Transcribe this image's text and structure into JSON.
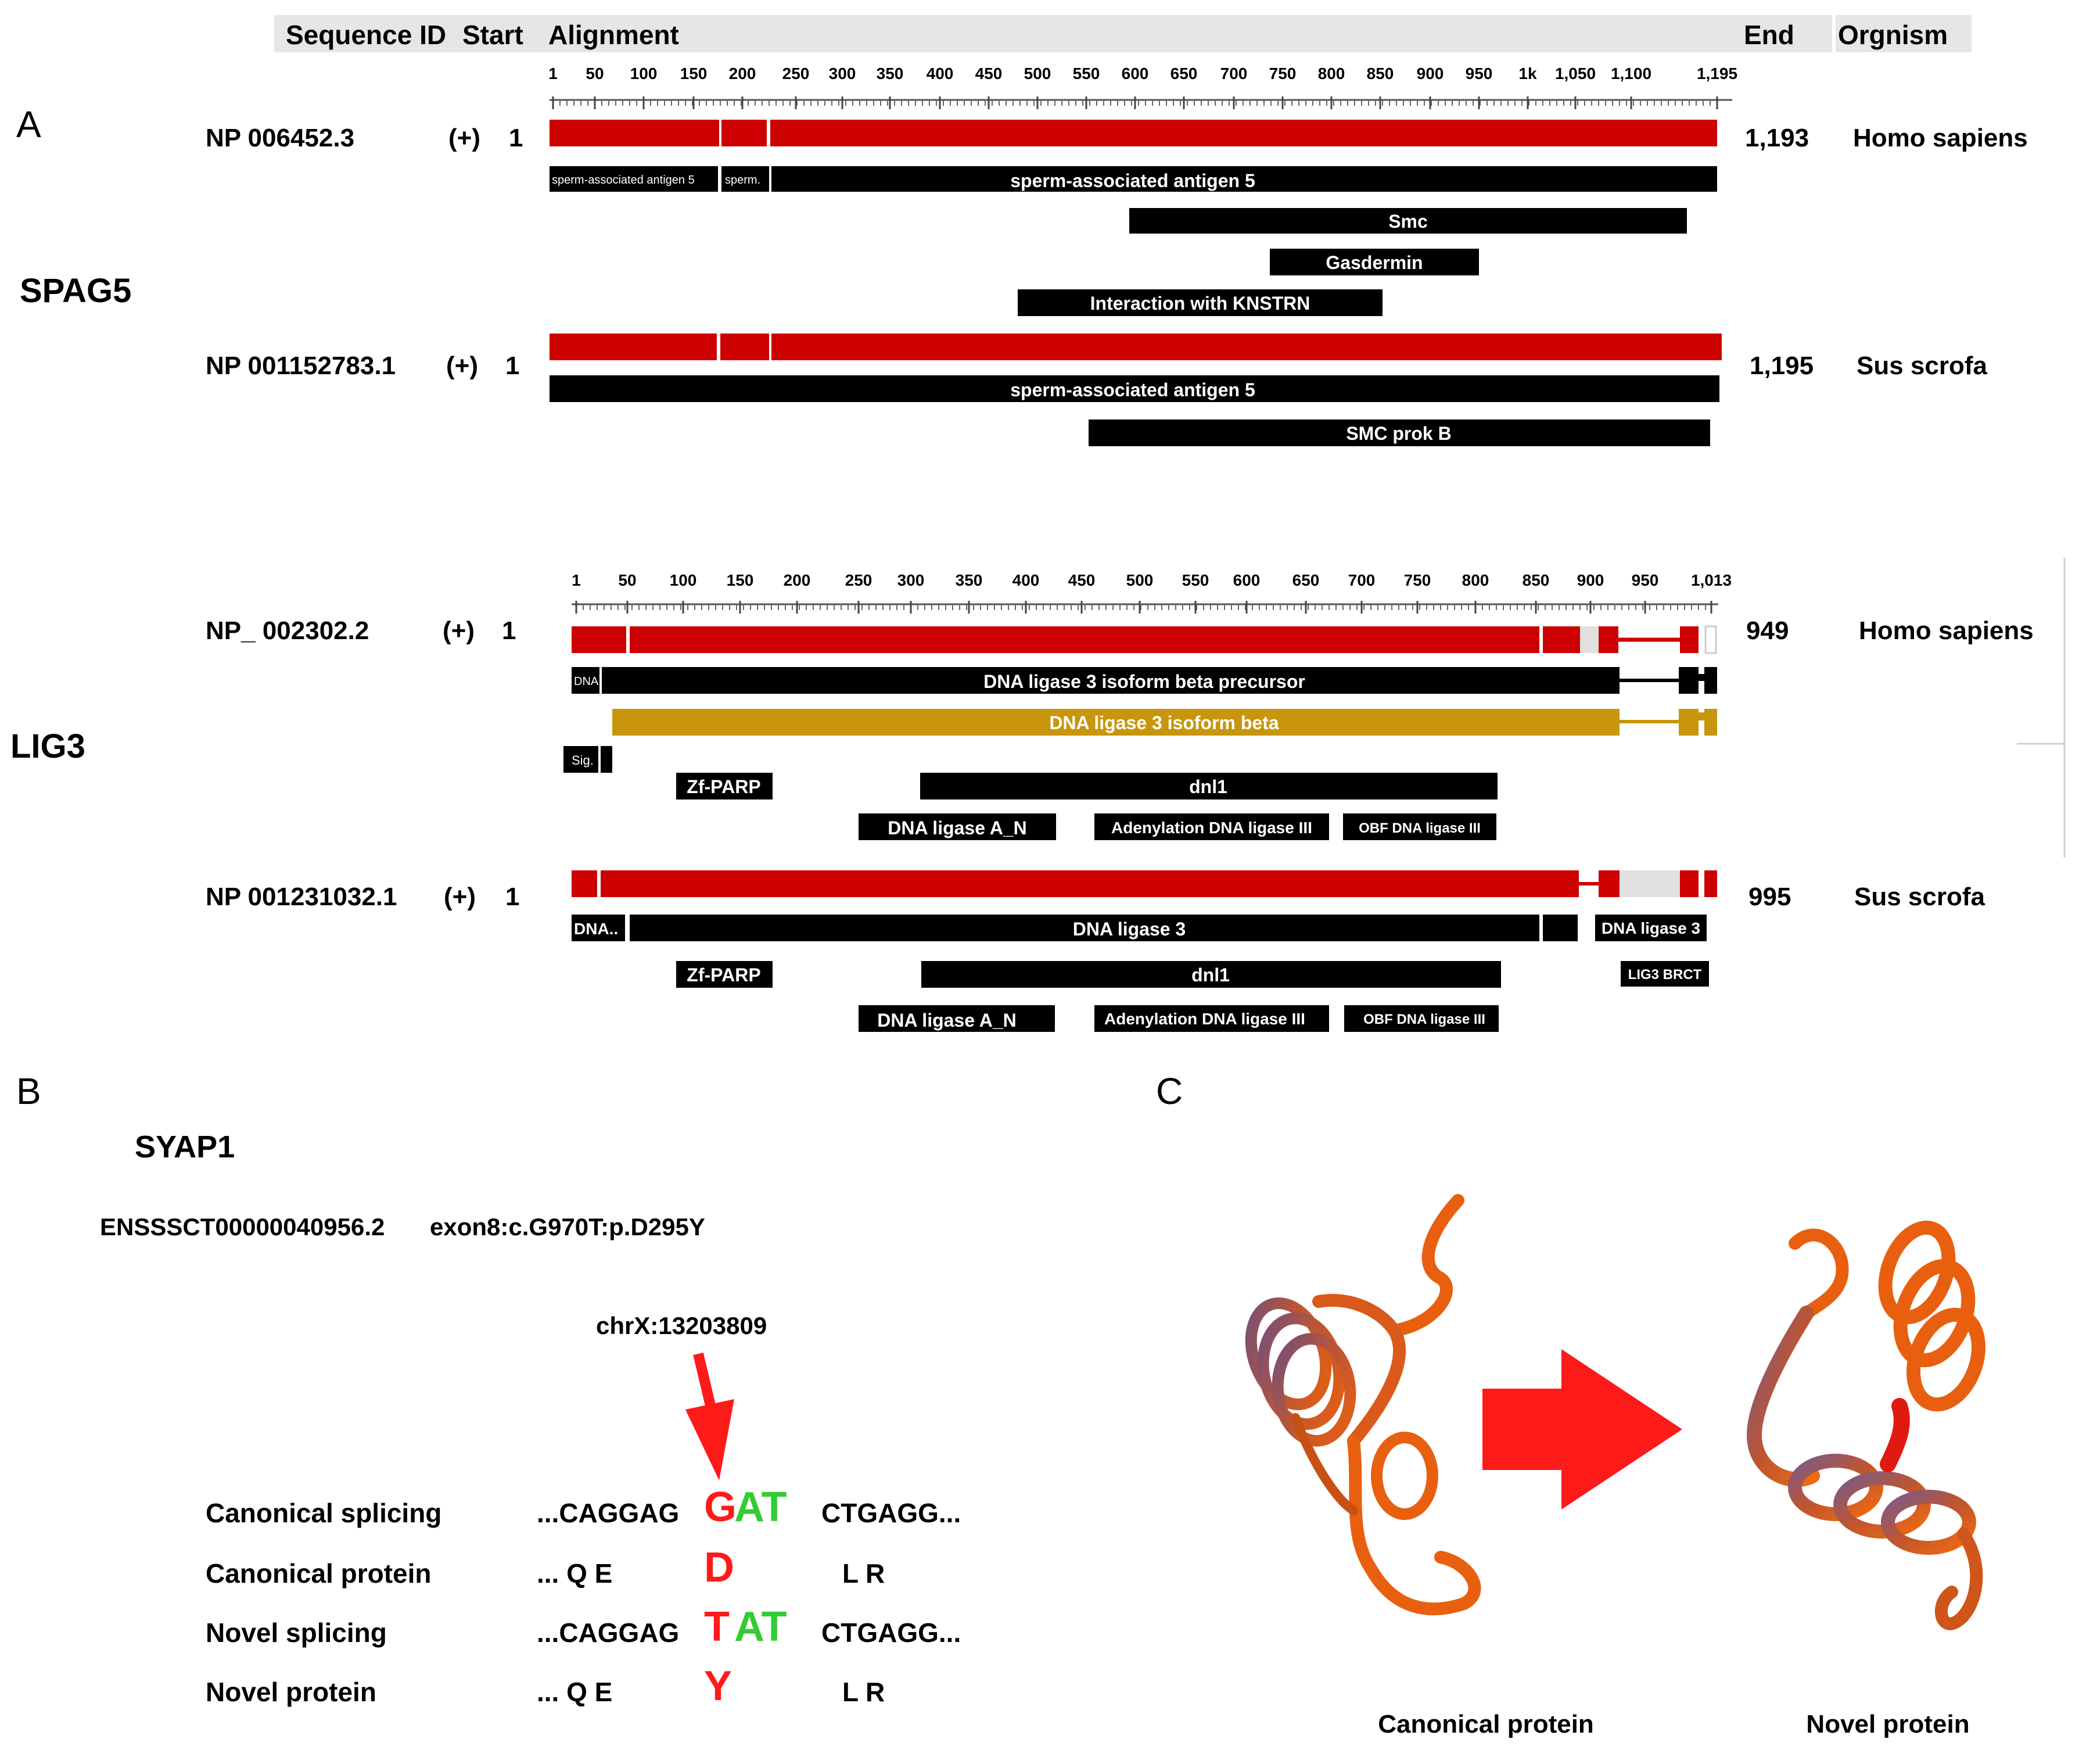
{
  "header": {
    "sequence_id": "Sequence ID",
    "start": "Start",
    "alignment": "Alignment",
    "end": "End",
    "organism": "Orgnism"
  },
  "panels": {
    "a": "A",
    "b": "B",
    "c": "C"
  },
  "spag5": {
    "gene": "SPAG5",
    "axis_ticks": [
      "1",
      "50",
      "100",
      "150",
      "200",
      "250",
      "300",
      "350",
      "400",
      "450",
      "500",
      "550",
      "600",
      "650",
      "700",
      "750",
      "800",
      "850",
      "900",
      "950",
      "1k",
      "1,050",
      "1,100",
      "1,195"
    ],
    "human": {
      "id": "NP 006452.3",
      "strand": "(+)",
      "start": "1",
      "end": "1,193",
      "organism": "Homo sapiens",
      "domains": {
        "sperm1": "sperm-associated antigen 5",
        "sperm2": "sperm.",
        "sperm3": "sperm-associated antigen 5",
        "smc": "Smc",
        "gasdermin": "Gasdermin",
        "knstrn": "Interaction with KNSTRN"
      }
    },
    "pig": {
      "id": "NP 001152783.1",
      "strand": "(+)",
      "start": "1",
      "end": "1,195",
      "organism": "Sus scrofa",
      "domains": {
        "sperm": "sperm-associated antigen 5",
        "smcprok": "SMC prok B"
      }
    }
  },
  "lig3": {
    "gene": "LIG3",
    "axis_ticks": [
      "1",
      "50",
      "100",
      "150",
      "200",
      "250",
      "300",
      "350",
      "400",
      "450",
      "500",
      "550",
      "600",
      "650",
      "700",
      "750",
      "800",
      "850",
      "900",
      "950",
      "1,013"
    ],
    "human": {
      "id": "NP_ 002302.2",
      "strand": "(+)",
      "start": "1",
      "end": "949",
      "organism": "Homo sapiens",
      "domains": {
        "dna_short": "DNA",
        "precursor": "DNA ligase 3 isoform beta precursor",
        "beta": "DNA ligase 3 isoform beta",
        "sig": "Sig.",
        "zfparp": "Zf-PARP",
        "dnl1": "dnl1",
        "ligase_an": "DNA ligase A_N",
        "adenylation": "Adenylation DNA ligase III",
        "obf": "OBF DNA ligase III"
      }
    },
    "pig": {
      "id": "NP 001231032.1",
      "strand": "(+)",
      "start": "1",
      "end": "995",
      "organism": "Sus scrofa",
      "domains": {
        "dna_short": "DNA..",
        "ligase3": "DNA ligase 3",
        "ligase3_right": "DNA ligase 3",
        "zfparp": "Zf-PARP",
        "dnl1": "dnl1",
        "brct": "LIG3 BRCT",
        "ligase_an": "DNA ligase A_N",
        "adenylation": "Adenylation DNA ligase III",
        "obf": "OBF DNA ligase III"
      }
    }
  },
  "syap1": {
    "gene": "SYAP1",
    "transcript": "ENSSSCT00000040956.2",
    "mutation": "exon8:c.G970T:p.D295Y",
    "locus": "chrX:13203809",
    "rows": [
      {
        "label": "Canonical splicing",
        "left": "...CAGGAG",
        "mut": "G",
        "rest": "AT",
        "right": "CTGAGG..."
      },
      {
        "label": "Canonical protein",
        "left": "...  Q    E",
        "mut": "D",
        "rest": "",
        "right": "L    R"
      },
      {
        "label": "Novel splicing",
        "left": "...CAGGAG",
        "mut": "T",
        "rest": "AT",
        "right": "CTGAGG..."
      },
      {
        "label": "Novel protein",
        "left": "...  Q    E",
        "mut": "Y",
        "rest": "",
        "right": "L    R"
      }
    ]
  },
  "structures": {
    "canonical": "Canonical protein",
    "novel": "Novel protein"
  },
  "colors": {
    "alignment_red": "#cc0000",
    "domain_black": "#000000",
    "isoform_gold": "#c8960c",
    "mutation_red": "#ff1a1a",
    "codon_green": "#33cc33",
    "ribbon_orange": "#e8600f",
    "ribbon_purple": "#7a5a8a"
  }
}
